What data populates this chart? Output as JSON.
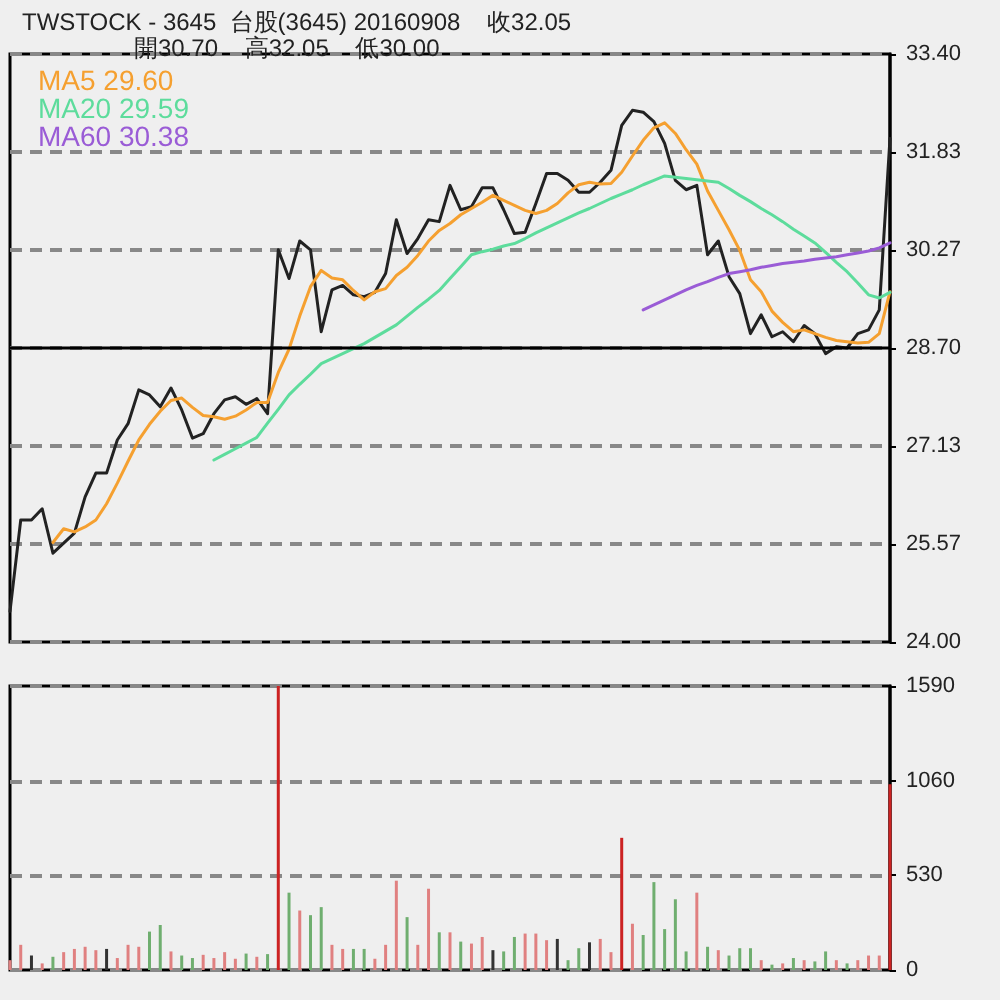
{
  "chart_data": [
    {
      "type": "line",
      "title": "TWSTOCK - 3645  台股(3645) 20160908    收32.05",
      "subtitle": "開30.70    高32.05    低30.00",
      "categories": [
        null,
        null,
        null,
        null,
        null,
        null,
        null,
        null,
        null,
        null,
        null,
        null,
        null,
        null,
        null,
        null,
        null,
        null,
        null,
        null,
        null,
        null,
        null,
        null,
        null,
        null,
        null,
        null,
        null,
        null,
        null,
        null,
        null,
        null,
        null,
        null,
        null,
        null,
        null,
        null,
        null,
        null,
        null,
        null,
        null,
        null,
        null,
        null,
        null,
        null,
        null,
        null,
        null,
        null,
        null,
        null,
        null,
        null,
        null,
        null,
        null,
        null,
        null,
        null,
        null,
        null,
        null,
        null,
        null,
        null,
        null,
        null,
        null,
        null,
        null,
        null,
        null,
        null,
        null,
        null,
        null,
        null,
        null
      ],
      "series": [
        {
          "color": "#222222",
          "values": [
            24.49,
            25.95,
            25.95,
            26.13,
            25.42,
            25.58,
            25.74,
            26.32,
            26.7,
            26.7,
            27.23,
            27.49,
            28.03,
            27.95,
            27.76,
            28.06,
            27.71,
            27.26,
            27.33,
            27.65,
            27.87,
            27.92,
            27.8,
            27.89,
            27.65,
            30.27,
            29.81,
            30.41,
            30.27,
            28.96,
            29.63,
            29.7,
            29.55,
            29.52,
            29.59,
            29.89,
            30.75,
            30.21,
            30.45,
            30.75,
            30.72,
            31.3,
            30.91,
            30.96,
            31.26,
            31.26,
            30.91,
            30.53,
            30.55,
            31.01,
            31.49,
            31.49,
            31.38,
            31.19,
            31.19,
            31.35,
            31.54,
            32.26,
            32.5,
            32.47,
            32.32,
            31.97,
            31.38,
            31.23,
            31.3,
            30.19,
            30.41,
            29.84,
            29.57,
            28.93,
            29.23,
            28.88,
            28.96,
            28.8,
            29.06,
            28.93,
            28.61,
            28.72,
            28.7,
            28.93,
            28.99,
            29.31,
            32.05
          ]
        },
        {
          "name": "MA5 29.60",
          "color": "#f5a030",
          "values": [
            null,
            null,
            null,
            null,
            25.59,
            25.81,
            25.76,
            25.84,
            25.95,
            26.21,
            26.54,
            26.89,
            27.23,
            27.48,
            27.69,
            27.86,
            27.9,
            27.75,
            27.62,
            27.6,
            27.56,
            27.61,
            27.71,
            27.83,
            27.83,
            28.31,
            28.68,
            29.21,
            29.68,
            29.94,
            29.82,
            29.79,
            29.62,
            29.47,
            29.6,
            29.65,
            29.86,
            29.99,
            30.18,
            30.41,
            30.58,
            30.69,
            30.83,
            30.93,
            31.03,
            31.14,
            31.06,
            30.98,
            30.9,
            30.85,
            30.9,
            31.01,
            31.18,
            31.31,
            31.35,
            31.32,
            31.33,
            31.51,
            31.77,
            32.02,
            32.22,
            32.3,
            32.13,
            31.87,
            31.64,
            31.21,
            30.9,
            30.59,
            30.26,
            29.79,
            29.6,
            29.29,
            29.11,
            28.96,
            28.99,
            28.93,
            28.87,
            28.82,
            28.8,
            28.78,
            28.79,
            28.93,
            29.6
          ]
        },
        {
          "name": "MA20 29.59",
          "color": "#5ddc9c",
          "values": [
            null,
            null,
            null,
            null,
            null,
            null,
            null,
            null,
            null,
            null,
            null,
            null,
            null,
            null,
            null,
            null,
            null,
            null,
            null,
            26.91,
            27.0,
            27.09,
            27.18,
            27.27,
            27.5,
            27.72,
            27.95,
            28.12,
            28.28,
            28.45,
            28.53,
            28.61,
            28.69,
            28.77,
            28.87,
            28.97,
            29.07,
            29.21,
            29.35,
            29.48,
            29.62,
            29.81,
            30.0,
            30.19,
            30.24,
            30.28,
            30.33,
            30.37,
            30.45,
            30.54,
            30.62,
            30.7,
            30.78,
            30.86,
            30.93,
            31.01,
            31.09,
            31.16,
            31.23,
            31.31,
            31.38,
            31.45,
            31.43,
            31.41,
            31.39,
            31.37,
            31.35,
            31.25,
            31.14,
            31.04,
            30.93,
            30.83,
            30.72,
            30.6,
            30.49,
            30.38,
            30.23,
            30.07,
            29.92,
            29.74,
            29.55,
            29.5,
            29.59
          ]
        },
        {
          "name": "MA60 30.38",
          "color": "#9a5cd6",
          "values": [
            null,
            null,
            null,
            null,
            null,
            null,
            null,
            null,
            null,
            null,
            null,
            null,
            null,
            null,
            null,
            null,
            null,
            null,
            null,
            null,
            null,
            null,
            null,
            null,
            null,
            null,
            null,
            null,
            null,
            null,
            null,
            null,
            null,
            null,
            null,
            null,
            null,
            null,
            null,
            null,
            null,
            null,
            null,
            null,
            null,
            null,
            null,
            null,
            null,
            null,
            null,
            null,
            null,
            null,
            null,
            null,
            null,
            null,
            null,
            29.31,
            29.39,
            29.47,
            29.55,
            29.63,
            29.7,
            29.76,
            29.83,
            29.89,
            29.92,
            29.95,
            29.99,
            30.02,
            30.05,
            30.07,
            30.09,
            30.12,
            30.14,
            30.16,
            30.19,
            30.22,
            30.25,
            30.3,
            30.38
          ]
        }
      ],
      "ylim": [
        24.0,
        33.4
      ],
      "yticks": [
        {
          "value": 24.0,
          "label": "24.00"
        },
        {
          "value": 25.57,
          "label": "25.57"
        },
        {
          "value": 27.13,
          "label": "27.13"
        },
        {
          "value": 28.7,
          "label": "28.70"
        },
        {
          "value": 30.27,
          "label": "30.27"
        },
        {
          "value": 31.83,
          "label": "31.83"
        },
        {
          "value": 33.4,
          "label": "33.40"
        }
      ],
      "grid": "y",
      "legend": "top left",
      "marker": "none",
      "ref_lines": [
        {
          "axis": "y",
          "value": 28.7,
          "color": "#000000",
          "line_style": "solid"
        }
      ]
    },
    {
      "type": "bar",
      "categories": [
        null,
        null,
        null,
        null,
        null,
        null,
        null,
        null,
        null,
        null,
        null,
        null,
        null,
        null,
        null,
        null,
        null,
        null,
        null,
        null,
        null,
        null,
        null,
        null,
        null,
        null,
        null,
        null,
        null,
        null,
        null,
        null,
        null,
        null,
        null,
        null,
        null,
        null,
        null,
        null,
        null,
        null,
        null,
        null,
        null,
        null,
        null,
        null,
        null,
        null,
        null,
        null,
        null,
        null,
        null,
        null,
        null,
        null,
        null,
        null,
        null,
        null,
        null,
        null,
        null,
        null,
        null,
        null,
        null,
        null,
        null,
        null,
        null,
        null,
        null,
        null,
        null,
        null,
        null,
        null,
        null,
        null,
        null
      ],
      "values": [
        55,
        141,
        81,
        37,
        74,
        100,
        118,
        130,
        111,
        118,
        67,
        141,
        130,
        215,
        252,
        104,
        81,
        67,
        85,
        67,
        100,
        63,
        92,
        74,
        89,
        1590,
        433,
        333,
        307,
        352,
        141,
        118,
        118,
        118,
        63,
        141,
        500,
        296,
        141,
        455,
        211,
        211,
        159,
        148,
        185,
        111,
        104,
        185,
        204,
        204,
        167,
        174,
        55,
        122,
        155,
        174,
        100,
        740,
        259,
        196,
        492,
        229,
        396,
        104,
        433,
        130,
        111,
        81,
        122,
        122,
        55,
        30,
        37,
        67,
        55,
        48,
        104,
        55,
        37,
        55,
        81,
        81,
        1040
      ],
      "colors": [
        "#e08080",
        "#e08080",
        "#333333",
        "#e08080",
        "#6fae6f",
        "#e08080",
        "#e08080",
        "#e08080",
        "#e08080",
        "#333333",
        "#e08080",
        "#e08080",
        "#e08080",
        "#6fae6f",
        "#6fae6f",
        "#e08080",
        "#6fae6f",
        "#6fae6f",
        "#e08080",
        "#e08080",
        "#e08080",
        "#e08080",
        "#6fae6f",
        "#e08080",
        "#6fae6f",
        "#cc2222",
        "#6fae6f",
        "#e08080",
        "#6fae6f",
        "#6fae6f",
        "#e08080",
        "#e08080",
        "#6fae6f",
        "#6fae6f",
        "#e08080",
        "#e08080",
        "#e08080",
        "#6fae6f",
        "#e08080",
        "#e08080",
        "#6fae6f",
        "#e08080",
        "#6fae6f",
        "#e08080",
        "#e08080",
        "#333333",
        "#6fae6f",
        "#6fae6f",
        "#e08080",
        "#e08080",
        "#e08080",
        "#333333",
        "#6fae6f",
        "#6fae6f",
        "#333333",
        "#e08080",
        "#e08080",
        "#cc2222",
        "#e08080",
        "#6fae6f",
        "#6fae6f",
        "#6fae6f",
        "#6fae6f",
        "#6fae6f",
        "#e08080",
        "#6fae6f",
        "#e08080",
        "#6fae6f",
        "#6fae6f",
        "#6fae6f",
        "#e08080",
        "#6fae6f",
        "#e08080",
        "#6fae6f",
        "#e08080",
        "#6fae6f",
        "#6fae6f",
        "#e08080",
        "#6fae6f",
        "#e08080",
        "#e08080",
        "#e08080",
        "#cc2222"
      ],
      "ylim": [
        0,
        1590
      ],
      "yticks": [
        0,
        530,
        1060,
        1590
      ],
      "grid": "y"
    }
  ]
}
